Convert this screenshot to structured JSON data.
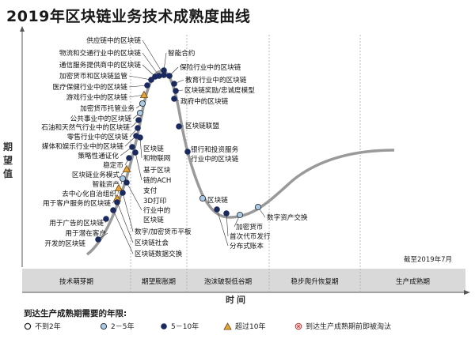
{
  "title": "2019年区块链业务技术成熟度曲线",
  "ylabel": "期望值",
  "xlabel": "时间",
  "asof": "截至2019年7月",
  "chart_data": {
    "type": "hype-cycle",
    "phases": [
      "技术萌芽期",
      "期望膨胀期",
      "泡沫破裂低谷期",
      "稳步爬升恢复期",
      "生产成熟期"
    ],
    "legend_title": "到达生产成熟期需要的年限:",
    "legend": [
      {
        "key": "lt2",
        "label": "不到2年"
      },
      {
        "key": "2to5",
        "label": "2－5年"
      },
      {
        "key": "5to10",
        "label": "5－10年"
      },
      {
        "key": "gt10",
        "label": "超过10年"
      },
      {
        "key": "obsolete",
        "label": "到达生产成熟期前即被淘汰"
      }
    ],
    "left_labels": [
      "供应链中的区块链",
      "物流和交通行业中的区块链",
      "通信服务提供商中的区块链",
      "加密货币和区块链监管",
      "医疗保健行业中的区块链",
      "游戏行业中的区块链",
      "加密货币托管业务",
      "公共事业中的区块链",
      "石油和天然气行业中的区块链",
      "零售行业中的区块链",
      "媒体和娱乐行业中的区块链",
      "策略性通证化",
      "稳定币",
      "区块链业务模式",
      "智能资产",
      "去中心化自治组织",
      "用于客户服务的区块链",
      "用于广告的区块链",
      "用于潜在客户",
      "开发的区块链"
    ],
    "right_labels": [
      "智能合约",
      "保险行业中的区块链",
      "教育行业中的区块链",
      "区块链奖励/忠诚度模型",
      "政府中的区块链",
      "区块链联盟",
      "银行和投资服务",
      "行业中的区块链",
      "区块链",
      "数字资产交换",
      "加密货币",
      "首次代币发行",
      "分布式账本"
    ],
    "mid_labels": [
      "区块链",
      "和物联网",
      "基于区块",
      "链的ACH",
      "支付",
      "3D打印",
      "行业中的",
      "区块链",
      "数字/加密货币平板",
      "区块链社会",
      "区块链数据交换"
    ]
  }
}
